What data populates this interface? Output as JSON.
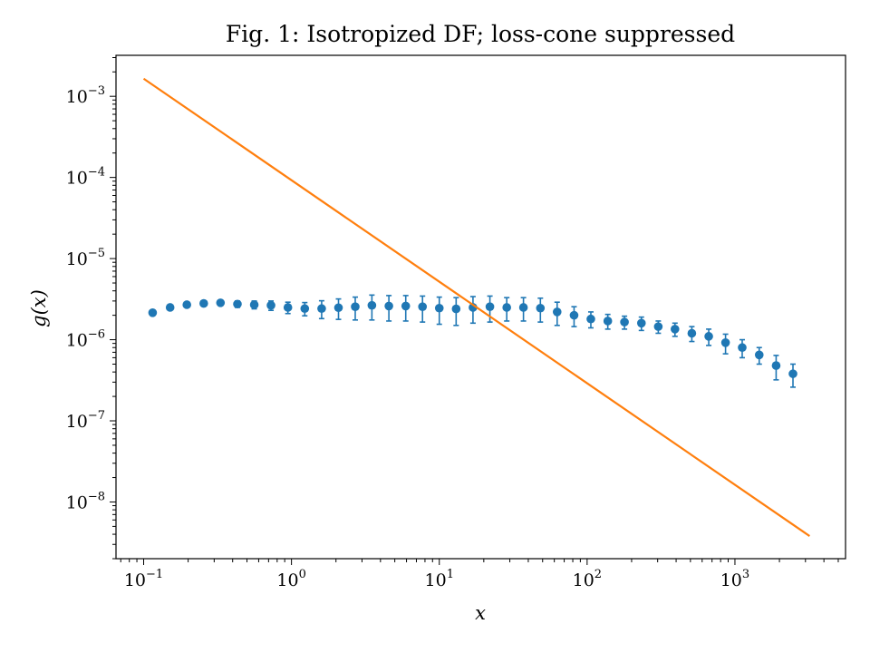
{
  "chart_data": {
    "type": "scatter",
    "title": "Fig. 1: Isotropized DF; loss-cone suppressed",
    "xlabel": "x",
    "ylabel": "g(x)",
    "xscale": "log",
    "yscale": "log",
    "xlim": [
      0.065,
      5600
    ],
    "ylim": [
      2e-09,
      0.0032
    ],
    "x_ticks": [
      {
        "value": 0.1,
        "base": "10",
        "exp": "−1"
      },
      {
        "value": 1,
        "base": "10",
        "exp": "0"
      },
      {
        "value": 10,
        "base": "10",
        "exp": "1"
      },
      {
        "value": 100,
        "base": "10",
        "exp": "2"
      },
      {
        "value": 1000,
        "base": "10",
        "exp": "3"
      }
    ],
    "y_ticks": [
      {
        "value": 1e-08,
        "base": "10",
        "exp": "−8"
      },
      {
        "value": 1e-07,
        "base": "10",
        "exp": "−7"
      },
      {
        "value": 1e-06,
        "base": "10",
        "exp": "−6"
      },
      {
        "value": 1e-05,
        "base": "10",
        "exp": "−5"
      },
      {
        "value": 0.0001,
        "base": "10",
        "exp": "−4"
      },
      {
        "value": 0.001,
        "base": "10",
        "exp": "−3"
      }
    ],
    "grid": false,
    "series": [
      {
        "kind": "errorbar",
        "color": "#1f77b4",
        "x": [
          0.115,
          0.151,
          0.196,
          0.255,
          0.331,
          0.431,
          0.56,
          0.727,
          0.946,
          1.23,
          1.6,
          2.08,
          2.7,
          3.5,
          4.56,
          5.93,
          7.7,
          10.0,
          13.0,
          16.9,
          22.0,
          28.6,
          37.1,
          48.3,
          62.7,
          81.6,
          106,
          138,
          179,
          233,
          303,
          393,
          511,
          665,
          864,
          1120,
          1460,
          1900,
          2470
        ],
        "y": [
          2.15e-06,
          2.5e-06,
          2.7e-06,
          2.8e-06,
          2.85e-06,
          2.75e-06,
          2.7e-06,
          2.65e-06,
          2.5e-06,
          2.42e-06,
          2.42e-06,
          2.48e-06,
          2.55e-06,
          2.65e-06,
          2.6e-06,
          2.6e-06,
          2.55e-06,
          2.45e-06,
          2.4e-06,
          2.5e-06,
          2.55e-06,
          2.5e-06,
          2.5e-06,
          2.45e-06,
          2.2e-06,
          2e-06,
          1.8e-06,
          1.7e-06,
          1.65e-06,
          1.6e-06,
          1.45e-06,
          1.35e-06,
          1.2e-06,
          1.1e-06,
          9.2e-07,
          8e-07,
          6.5e-07,
          4.8e-07,
          3.8e-07
        ],
        "yerr_low": [
          0,
          0,
          0,
          1.5e-07,
          1.5e-07,
          2.5e-07,
          3e-07,
          3.5e-07,
          4e-07,
          4.5e-07,
          6e-07,
          7e-07,
          8e-07,
          9e-07,
          9e-07,
          9e-07,
          9e-07,
          9e-07,
          9e-07,
          9e-07,
          9e-07,
          8e-07,
          8e-07,
          8e-07,
          7e-07,
          5.5e-07,
          4e-07,
          3.5e-07,
          3e-07,
          3e-07,
          2.5e-07,
          2.5e-07,
          2.5e-07,
          2.5e-07,
          2.5e-07,
          2e-07,
          1.5e-07,
          1.6e-07,
          1.2e-07
        ],
        "yerr_high": [
          0,
          0,
          0,
          1.5e-07,
          1.5e-07,
          2.5e-07,
          3e-07,
          3.5e-07,
          4e-07,
          4.5e-07,
          6e-07,
          7e-07,
          8e-07,
          9e-07,
          9e-07,
          9e-07,
          9e-07,
          9e-07,
          9e-07,
          9e-07,
          9e-07,
          8e-07,
          8e-07,
          8e-07,
          7e-07,
          5.5e-07,
          4e-07,
          3.5e-07,
          3e-07,
          3e-07,
          2.5e-07,
          2.5e-07,
          2.5e-07,
          2.5e-07,
          2.5e-07,
          2e-07,
          1.5e-07,
          1.6e-07,
          1.2e-07
        ]
      },
      {
        "kind": "line",
        "color": "#ff7f0e",
        "x": [
          0.1,
          3200
        ],
        "y": [
          0.00165,
          3.8e-09
        ]
      }
    ]
  }
}
